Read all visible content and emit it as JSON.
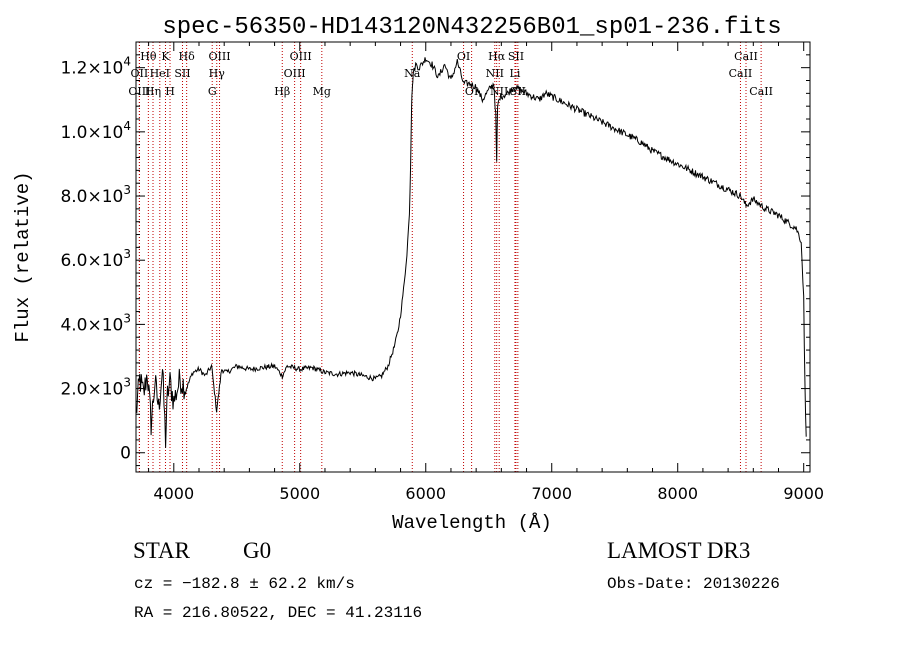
{
  "chart_data": {
    "type": "line",
    "title": "spec-56350-HD143120N432256B01_sp01-236.fits",
    "xlabel": "Wavelength (Å)",
    "ylabel": "Flux (relative)",
    "xlim": [
      3700,
      9050
    ],
    "ylim": [
      -600,
      12800
    ],
    "x_ticks": [
      4000,
      5000,
      6000,
      7000,
      8000,
      9000
    ],
    "x_tick_labels": [
      "4000",
      "5000",
      "6000",
      "7000",
      "8000",
      "9000"
    ],
    "y_ticks": [
      0,
      2000,
      4000,
      6000,
      8000,
      10000,
      12000
    ],
    "y_tick_labels": [
      {
        "mant": "0",
        "exp": ""
      },
      {
        "mant": "2.0×10",
        "exp": "3"
      },
      {
        "mant": "4.0×10",
        "exp": "3"
      },
      {
        "mant": "6.0×10",
        "exp": "3"
      },
      {
        "mant": "8.0×10",
        "exp": "3"
      },
      {
        "mant": "1.0×10",
        "exp": "4"
      },
      {
        "mant": "1.2×10",
        "exp": "4"
      }
    ],
    "series": [
      {
        "name": "spectrum",
        "x": [
          3700,
          3730,
          3760,
          3790,
          3820,
          3850,
          3880,
          3910,
          3935,
          3950,
          3970,
          4000,
          4050,
          4100,
          4150,
          4200,
          4250,
          4300,
          4340,
          4380,
          4420,
          4500,
          4600,
          4700,
          4800,
          4861,
          4900,
          5000,
          5100,
          5200,
          5300,
          5400,
          5500,
          5600,
          5650,
          5700,
          5750,
          5780,
          5800,
          5830,
          5850,
          5870,
          5880,
          5886,
          5890,
          5895,
          5900,
          5920,
          5950,
          6000,
          6050,
          6100,
          6150,
          6200,
          6250,
          6300,
          6350,
          6400,
          6450,
          6500,
          6540,
          6556,
          6563,
          6570,
          6590,
          6650,
          6700,
          6750,
          6800,
          6850,
          6900,
          6950,
          7000,
          7100,
          7200,
          7300,
          7400,
          7500,
          7600,
          7700,
          7800,
          7900,
          8000,
          8100,
          8200,
          8300,
          8400,
          8500,
          8542,
          8600,
          8662,
          8700,
          8800,
          8900,
          8940,
          8960,
          8980,
          9000,
          9010,
          9020
        ],
        "y": [
          1200,
          2300,
          1800,
          2500,
          900,
          2200,
          1400,
          2600,
          400,
          1800,
          2200,
          1600,
          2300,
          2000,
          2500,
          2600,
          2400,
          2700,
          1300,
          2600,
          2500,
          2700,
          2600,
          2650,
          2700,
          2400,
          2700,
          2600,
          2650,
          2500,
          2450,
          2500,
          2400,
          2300,
          2400,
          2700,
          3300,
          3800,
          4300,
          5300,
          6200,
          7400,
          9000,
          10500,
          11200,
          11400,
          11800,
          12100,
          12000,
          12300,
          12100,
          11700,
          12100,
          11600,
          12200,
          11500,
          11500,
          11400,
          11000,
          11300,
          11500,
          10500,
          9000,
          10800,
          11100,
          11200,
          11400,
          11300,
          11200,
          11100,
          11000,
          11200,
          11100,
          10900,
          10700,
          10500,
          10300,
          10100,
          9900,
          9700,
          9400,
          9200,
          9000,
          8800,
          8600,
          8400,
          8200,
          8000,
          7700,
          7900,
          7700,
          7600,
          7400,
          7100,
          7000,
          6800,
          6600,
          4800,
          2000,
          500
        ]
      }
    ],
    "lines": [
      {
        "name": "Hθ",
        "wl": 3798,
        "row": 0
      },
      {
        "name": "OII",
        "wl": 3727,
        "row": 1
      },
      {
        "name": "OIII",
        "wl": 3727,
        "row": 2
      },
      {
        "name": "K",
        "wl": 3934,
        "row": 0
      },
      {
        "name": "HeI",
        "wl": 3889,
        "row": 1
      },
      {
        "name": "SII",
        "wl": 4069,
        "row": 1
      },
      {
        "name": "Hη",
        "wl": 3835,
        "row": 2
      },
      {
        "name": "H",
        "wl": 3970,
        "row": 2
      },
      {
        "name": "Hδ",
        "wl": 4102,
        "row": 0
      },
      {
        "name": "OIII",
        "wl": 4363,
        "row": 0
      },
      {
        "name": "Hγ",
        "wl": 4341,
        "row": 1
      },
      {
        "name": "G",
        "wl": 4305,
        "row": 2
      },
      {
        "name": "Hβ",
        "wl": 4861,
        "row": 2
      },
      {
        "name": "OIII",
        "wl": 5007,
        "row": 0
      },
      {
        "name": "OIII",
        "wl": 4959,
        "row": 1
      },
      {
        "name": "Mg",
        "wl": 5175,
        "row": 2
      },
      {
        "name": "Na",
        "wl": 5893,
        "row": 1
      },
      {
        "name": "OI",
        "wl": 6300,
        "row": 0
      },
      {
        "name": "OI",
        "wl": 6364,
        "row": 2
      },
      {
        "name": "Hα",
        "wl": 6563,
        "row": 0
      },
      {
        "name": "SII",
        "wl": 6716,
        "row": 0
      },
      {
        "name": "NII",
        "wl": 6548,
        "row": 1
      },
      {
        "name": "Li",
        "wl": 6708,
        "row": 1
      },
      {
        "name": "NII",
        "wl": 6583,
        "row": 2
      },
      {
        "name": "SII",
        "wl": 6731,
        "row": 2
      },
      {
        "name": "CaII",
        "wl": 8542,
        "row": 0
      },
      {
        "name": "CaII",
        "wl": 8498,
        "row": 1
      },
      {
        "name": "CaII",
        "wl": 8662,
        "row": 2
      }
    ]
  },
  "info": {
    "object_class": "STAR",
    "subclass": "G0",
    "survey": "LAMOST DR3",
    "cz": "cz = −182.8 ± 62.2 km/s",
    "obs_date": "Obs-Date: 20130226",
    "coords": "RA = 216.80522, DEC =  41.23116"
  },
  "colors": {
    "axis": "#000000",
    "spectrum": "#000000",
    "line_marker": "#c00000",
    "background": "#ffffff"
  }
}
